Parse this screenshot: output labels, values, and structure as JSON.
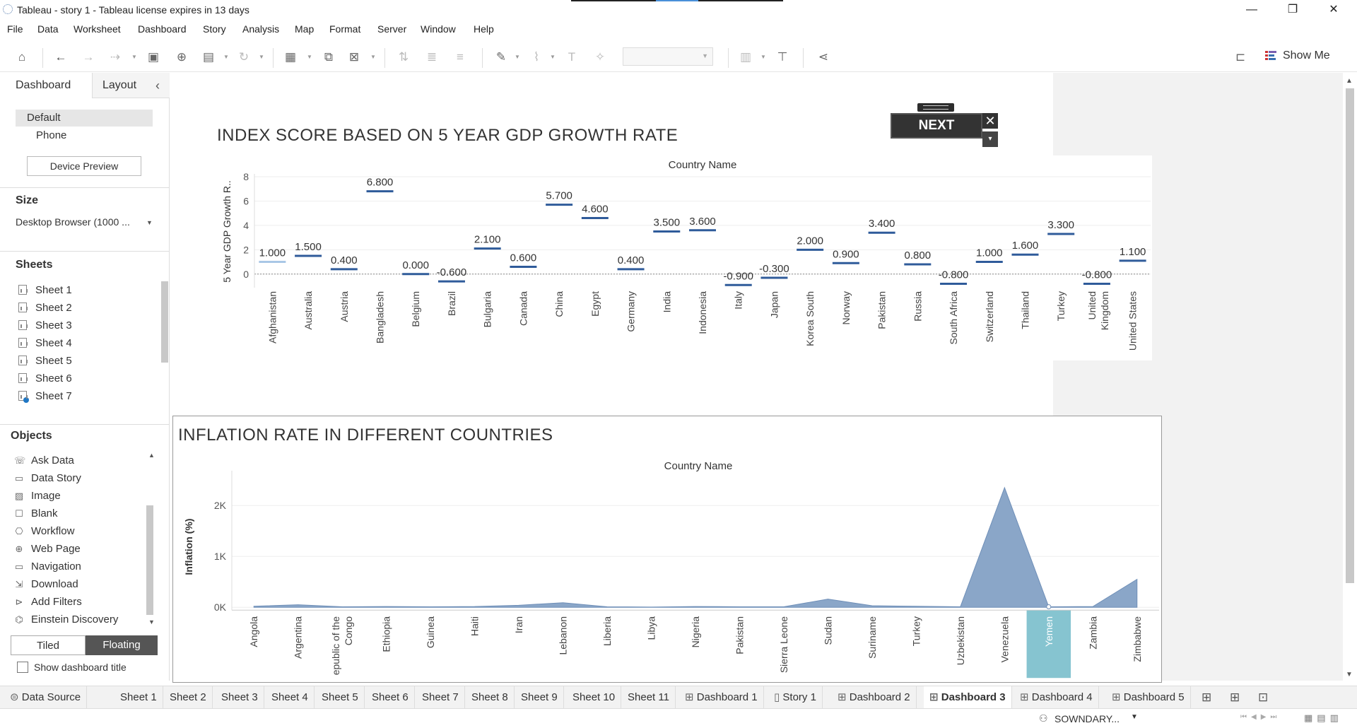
{
  "window": {
    "title": "Tableau - story 1 - Tableau license expires in 13 days",
    "minimize": "—",
    "restore": "❐",
    "close": "✕"
  },
  "menu": [
    "File",
    "Data",
    "Worksheet",
    "Dashboard",
    "Story",
    "Analysis",
    "Map",
    "Format",
    "Server",
    "Window",
    "Help"
  ],
  "toolbar": {
    "show_me_label": "Show Me"
  },
  "sidebar": {
    "tab_dashboard": "Dashboard",
    "tab_layout": "Layout",
    "collapse": "‹",
    "device_default": "Default",
    "device_phone": "Phone",
    "device_preview": "Device Preview",
    "size_title": "Size",
    "size_value": "Desktop Browser (1000 ...",
    "sheets_title": "Sheets",
    "sheets": [
      "Sheet 1",
      "Sheet 2",
      "Sheet 3",
      "Sheet 4",
      "Sheet 5",
      "Sheet 6",
      "Sheet 7"
    ],
    "objects_title": "Objects",
    "objects": [
      "Ask Data",
      "Data Story",
      "Image",
      "Blank",
      "Workflow",
      "Web Page",
      "Navigation",
      "Download",
      "Add Filters",
      "Einstein Discovery"
    ],
    "tiled": "Tiled",
    "floating": "Floating",
    "show_dashboard_title": "Show dashboard title"
  },
  "next_button": {
    "label": "NEXT",
    "close": "✕",
    "menu": "▾"
  },
  "chart_titles": {
    "gdp": "INDEX SCORE BASED ON 5 YEAR GDP GROWTH RATE",
    "inflation": "INFLATION RATE IN DIFFERENT COUNTRIES"
  },
  "chart_data": [
    {
      "type": "bar",
      "mark": "gantt-dash",
      "title": "INDEX SCORE BASED ON 5 YEAR GDP GROWTH RATE",
      "header": "Country Name",
      "ylabel": "5 Year GDP Growth R..",
      "ylim": [
        -1,
        8
      ],
      "yticks": [
        0,
        2,
        4,
        6,
        8
      ],
      "categories": [
        "Afghanistan",
        "Australia",
        "Austria",
        "Bangladesh",
        "Belgium",
        "Brazil",
        "Bulgaria",
        "Canada",
        "China",
        "Egypt",
        "Germany",
        "India",
        "Indonesia",
        "Italy",
        "Japan",
        "Korea South",
        "Norway",
        "Pakistan",
        "Russia",
        "South Africa",
        "Switzerland",
        "Thailand",
        "Turkey",
        "United Kingdom",
        "United States"
      ],
      "values": [
        1.0,
        1.5,
        0.4,
        6.8,
        0.0,
        -0.6,
        2.1,
        0.6,
        5.7,
        4.6,
        0.4,
        3.5,
        3.6,
        -0.9,
        -0.3,
        2.0,
        0.9,
        3.4,
        0.8,
        -0.8,
        1.0,
        1.6,
        3.3,
        -0.8,
        1.1
      ],
      "labels": [
        "1.000",
        "1.500",
        "0.400",
        "6.800",
        "0.000",
        "-0.600",
        "2.100",
        "0.600",
        "5.700",
        "4.600",
        "0.400",
        "3.500",
        "3.600",
        "-0.900",
        "-0.300",
        "2.000",
        "0.900",
        "3.400",
        "0.800",
        "-0.800",
        "1.000",
        "1.600",
        "3.300",
        "-0.800",
        "1.100"
      ],
      "colors": {
        "bar": "#2f5b9a",
        "first": "#a9c7e6"
      }
    },
    {
      "type": "area",
      "title": "INFLATION RATE IN DIFFERENT COUNTRIES",
      "header": "Country Name",
      "ylabel": "Inflation (%)",
      "ylim": [
        -150,
        2600
      ],
      "yticks": [
        0,
        1000,
        2000
      ],
      "ytick_labels": [
        "0K",
        "1K",
        "2K"
      ],
      "categories": [
        "Angola",
        "Argentina",
        "Republic of the Congo",
        "Ethiopia",
        "Guinea",
        "Haiti",
        "Iran",
        "Lebanon",
        "Liberia",
        "Libya",
        "Nigeria",
        "Pakistan",
        "Sierra Leone",
        "Sudan",
        "Suriname",
        "Turkey",
        "Uzbekistan",
        "Venezuela",
        "Yemen",
        "Zambia",
        "Zimbabwe"
      ],
      "category_display": [
        "Angola",
        "Argentina",
        "epublic of the\nCongo",
        "Ethiopia",
        "Guinea",
        "Haiti",
        "Iran",
        "Lebanon",
        "Liberia",
        "Libya",
        "Nigeria",
        "Pakistan",
        "Sierra Leone",
        "Sudan",
        "Suriname",
        "Turkey",
        "Uzbekistan",
        "Venezuela",
        "Yemen",
        "Zambia",
        "Zimbabwe"
      ],
      "values": [
        20,
        50,
        10,
        15,
        10,
        15,
        40,
        90,
        10,
        5,
        15,
        10,
        10,
        160,
        30,
        20,
        10,
        2350,
        10,
        15,
        550
      ],
      "highlighted": "Yemen",
      "colors": {
        "area": "#8aa6c8",
        "area_stroke": "#6f8fb8",
        "highlight": "#86c4d0"
      }
    }
  ],
  "sheet_tabs": [
    "Data Source",
    "Sheet 1",
    "Sheet 2",
    "Sheet 3",
    "Sheet 4",
    "Sheet 5",
    "Sheet 6",
    "Sheet 7",
    "Sheet 8",
    "Sheet 9",
    "Sheet 10",
    "Sheet 11",
    "Dashboard 1",
    "Story 1",
    "Dashboard 2",
    "Dashboard 3",
    "Dashboard 4",
    "Dashboard 5"
  ],
  "active_tab": "Dashboard 3",
  "status": {
    "user": "SOWNDARY..."
  }
}
